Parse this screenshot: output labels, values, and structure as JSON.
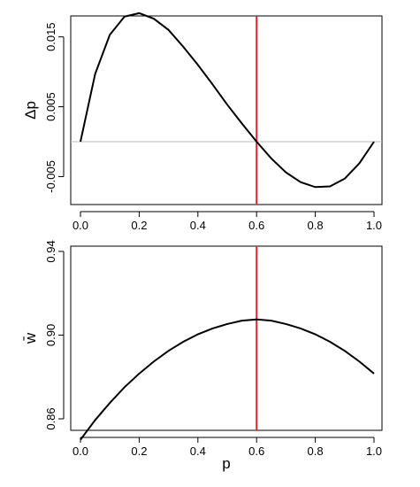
{
  "chart_data": [
    {
      "type": "line",
      "ylabel": "Δp",
      "xlim": [
        0,
        1
      ],
      "ylim": [
        -0.009,
        0.018
      ],
      "xticks": [
        "0.0",
        "0.2",
        "0.4",
        "0.6",
        "0.8",
        "1.0"
      ],
      "yticks": [
        "-0.005",
        "0.005",
        "0.015"
      ],
      "ytick_values": [
        -0.005,
        0.005,
        0.015
      ],
      "series": [
        {
          "x": [
            0,
            0.05,
            0.1,
            0.15,
            0.2,
            0.25,
            0.3,
            0.35,
            0.4,
            0.45,
            0.5,
            0.55,
            0.6,
            0.65,
            0.7,
            0.75,
            0.8,
            0.85,
            0.9,
            0.95,
            1.0
          ],
          "y": [
            0,
            0.0097,
            0.0153,
            0.0179,
            0.0184,
            0.0176,
            0.016,
            0.0136,
            0.011,
            0.0082,
            0.0053,
            0.0026,
            0,
            -0.0024,
            -0.0044,
            -0.0058,
            -0.0065,
            -0.0064,
            -0.0053,
            -0.0031,
            0
          ]
        }
      ],
      "reference_lines": {
        "horizontal_y": 0,
        "vertical_x": 0.6,
        "horizontal_color": "#bbbbbb",
        "vertical_color": "#e8262a"
      },
      "grid": false
    },
    {
      "type": "line",
      "xlabel": "p",
      "ylabel": "w̄",
      "xlim": [
        0,
        1
      ],
      "ylim": [
        0.8545,
        0.9425
      ],
      "xticks": [
        "0.0",
        "0.2",
        "0.4",
        "0.6",
        "0.8",
        "1.0"
      ],
      "yticks": [
        "0.86",
        "0.90",
        "0.94"
      ],
      "ytick_values": [
        0.86,
        0.9,
        0.94
      ],
      "series": [
        {
          "x": [
            0,
            0.05,
            0.1,
            0.15,
            0.2,
            0.25,
            0.3,
            0.35,
            0.4,
            0.45,
            0.5,
            0.55,
            0.6,
            0.65,
            0.7,
            0.75,
            0.8,
            0.85,
            0.9,
            0.95,
            1.0
          ],
          "y": [
            0.85,
            0.8594,
            0.8676,
            0.8751,
            0.8816,
            0.8874,
            0.8925,
            0.8968,
            0.9004,
            0.9032,
            0.9053,
            0.9069,
            0.9075,
            0.9069,
            0.9053,
            0.9032,
            0.9004,
            0.8968,
            0.8925,
            0.8874,
            0.8816
          ]
        }
      ],
      "reference_lines": {
        "vertical_x": 0.6,
        "vertical_color": "#e8262a"
      },
      "grid": false
    }
  ]
}
